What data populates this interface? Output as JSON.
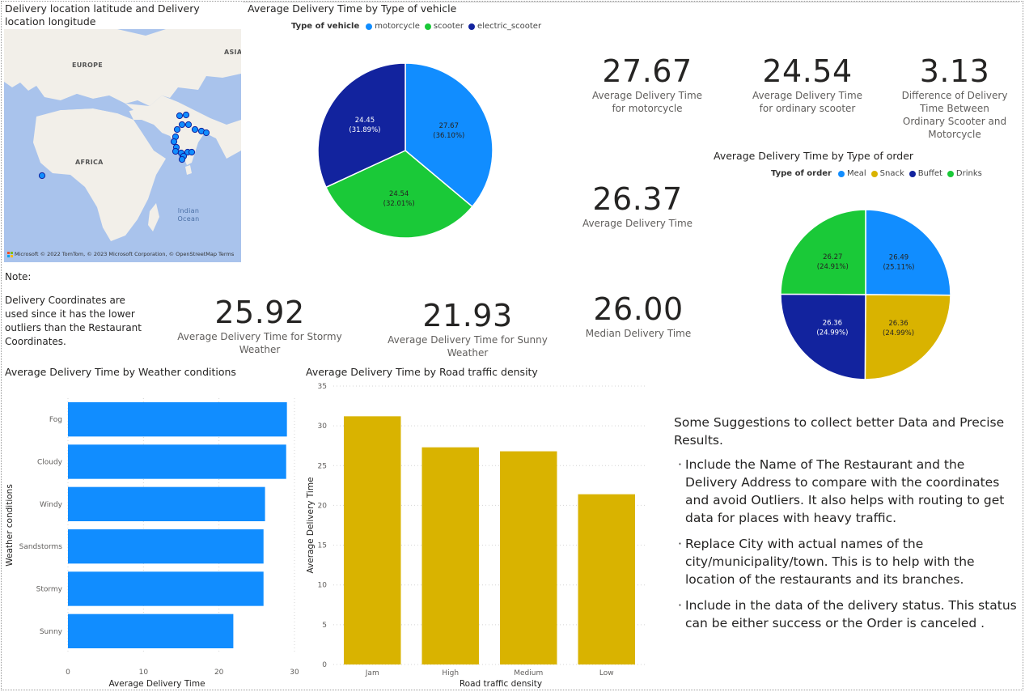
{
  "map": {
    "title": "Delivery location latitude and Delivery location longitude",
    "labels": {
      "europe": "EUROPE",
      "asia": "ASIA",
      "africa": "AFRICA",
      "ocean": "Indian Ocean"
    },
    "attribution": "© 2022 TomTom, © 2023 Microsoft Corporation, © OpenStreetMap  Terms",
    "brand": "Microsoft",
    "point_color": "#118DFF"
  },
  "note": {
    "heading": "Note:",
    "body": "Delivery Coordinates are used since it has the lower outliers than the Restaurant Coordinates."
  },
  "kpis": {
    "motorcycle": {
      "value": "27.67",
      "label": "Average Delivery Time for motorcycle"
    },
    "scooter": {
      "value": "24.54",
      "label": "Average Delivery Time for ordinary scooter"
    },
    "difference": {
      "value": "3.13",
      "label": "Difference of Delivery Time Between Ordinary Scooter and Motorcycle"
    },
    "average": {
      "value": "26.37",
      "label": "Average Delivery Time"
    },
    "stormy": {
      "value": "25.92",
      "label": "Average Delivery Time for Stormy Weather"
    },
    "sunny": {
      "value": "21.93",
      "label": "Average Delivery Time for Sunny Weather"
    },
    "median": {
      "value": "26.00",
      "label": "Median Delivery Time"
    }
  },
  "suggestions": {
    "heading": "Some Suggestions to collect better Data and Precise Results.",
    "items": [
      "Include the Name of The Restaurant and the Delivery Address to compare with the coordinates and avoid Outliers. It also helps with routing to get data for places with heavy traffic.",
      "Replace City with actual names of the city/municipality/town. This is to help with the location of the restaurants and its branches.",
      "Include in the data of the delivery status. This status can be either success or the Order is canceled ."
    ]
  },
  "chart_data": [
    {
      "type": "pie",
      "title": "Average Delivery Time by Type of vehicle",
      "legend_title": "Type of vehicle",
      "legend_position": "top-left",
      "categories": [
        "motorcycle",
        "scooter",
        "electric_scooter"
      ],
      "values": [
        27.67,
        24.54,
        24.45
      ],
      "labels": [
        "27.67",
        "24.54",
        "24.45"
      ],
      "percents": [
        "(36.10%)",
        "(32.01%)",
        "(31.89%)"
      ],
      "colors": [
        "#118DFF",
        "#1AC938",
        "#12239E"
      ]
    },
    {
      "type": "pie",
      "title": "Average Delivery Time by Type of order",
      "legend_title": "Type of order",
      "legend_position": "top-left",
      "categories": [
        "Meal",
        "Snack",
        "Buffet",
        "Drinks"
      ],
      "values": [
        26.49,
        26.36,
        26.36,
        26.27
      ],
      "labels": [
        "26.49",
        "26.36",
        "26.36",
        "26.27"
      ],
      "percents": [
        "(25.11%)",
        "(24.99%)",
        "(24.99%)",
        "(24.91%)"
      ],
      "colors": [
        "#118DFF",
        "#D9B300",
        "#12239E",
        "#1AC938"
      ]
    },
    {
      "type": "bar",
      "orientation": "horizontal",
      "title": "Average Delivery Time by Weather conditions",
      "categories": [
        "Fog",
        "Cloudy",
        "Windy",
        "Sandstorms",
        "Stormy",
        "Sunny"
      ],
      "values": [
        29.0,
        28.9,
        26.1,
        25.9,
        25.9,
        21.9
      ],
      "xlabel": "Average Delivery Time",
      "ylabel": "Weather conditions",
      "xlim": [
        0,
        30
      ],
      "ticks": [
        "0",
        "10",
        "20",
        "30"
      ],
      "grid": true,
      "color": "#118DFF"
    },
    {
      "type": "bar",
      "orientation": "vertical",
      "title": "Average Delivery Time by Road traffic density",
      "categories": [
        "Jam",
        "High",
        "Medium",
        "Low"
      ],
      "values": [
        31.2,
        27.3,
        26.8,
        21.4
      ],
      "xlabel": "Road traffic density",
      "ylabel": "Average Delivery Time",
      "ylim": [
        0,
        35
      ],
      "ticks": [
        "0",
        "5",
        "10",
        "15",
        "20",
        "25",
        "30",
        "35"
      ],
      "grid": true,
      "color": "#D9B300"
    }
  ]
}
